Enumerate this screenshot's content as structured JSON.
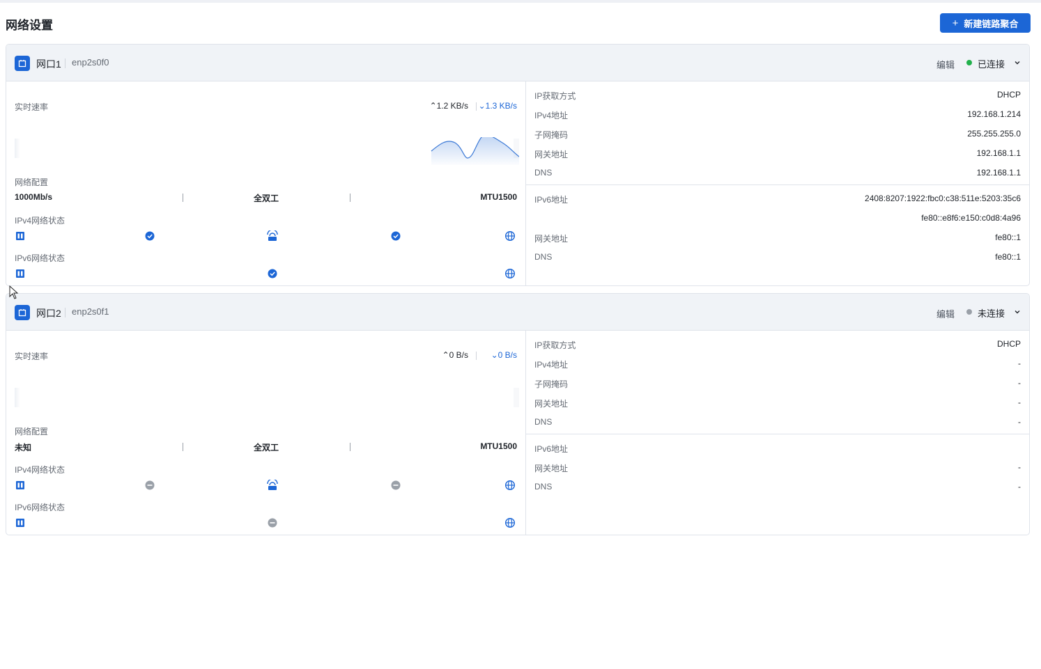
{
  "page": {
    "title": "网络设置",
    "new_button_label": "新建链路聚合"
  },
  "ports": [
    {
      "name": "网口1",
      "device": "enp2s0f0",
      "edit_label": "编辑",
      "status": "已连接",
      "status_color": "#22b14c",
      "realtime_label": "实时速率",
      "upload": "1.2 KB/s",
      "download": "1.3 KB/s",
      "config_label": "网络配置",
      "speed": "1000Mb/s",
      "duplex": "全双工",
      "mtu": "MTU1500",
      "ipv4_status_label": "IPv4网络状态",
      "ipv6_status_label": "IPv6网络状态",
      "ipv4_ok": true,
      "ipv6_ok": true,
      "ipv4_rows": [
        {
          "label": "IP获取方式",
          "value": "DHCP"
        },
        {
          "label": "IPv4地址",
          "value": "192.168.1.214"
        },
        {
          "label": "子网掩码",
          "value": "255.255.255.0"
        },
        {
          "label": "网关地址",
          "value": "192.168.1.1"
        },
        {
          "label": "DNS",
          "value": "192.168.1.1"
        }
      ],
      "ipv6_rows": [
        {
          "label": "IPv6地址",
          "value": "2408:8207:1922:fbc0:c38:511e:5203:35c6"
        },
        {
          "label": "",
          "value": "fe80::e8f6:e150:c0d8:4a96"
        },
        {
          "label": "网关地址",
          "value": "fe80::1"
        },
        {
          "label": "DNS",
          "value": "fe80::1"
        }
      ]
    },
    {
      "name": "网口2",
      "device": "enp2s0f1",
      "edit_label": "编辑",
      "status": "未连接",
      "status_color": "#9aa0a8",
      "realtime_label": "实时速率",
      "upload": "0 B/s",
      "download": "0 B/s",
      "config_label": "网络配置",
      "speed": "未知",
      "duplex": "全双工",
      "mtu": "MTU1500",
      "ipv4_status_label": "IPv4网络状态",
      "ipv6_status_label": "IPv6网络状态",
      "ipv4_ok": false,
      "ipv6_ok": false,
      "ipv4_rows": [
        {
          "label": "IP获取方式",
          "value": "DHCP"
        },
        {
          "label": "IPv4地址",
          "value": "-"
        },
        {
          "label": "子网掩码",
          "value": "-"
        },
        {
          "label": "网关地址",
          "value": "-"
        },
        {
          "label": "DNS",
          "value": "-"
        }
      ],
      "ipv6_rows": [
        {
          "label": "IPv6地址",
          "value": ""
        },
        {
          "label": "网关地址",
          "value": "-"
        },
        {
          "label": "DNS",
          "value": "-"
        }
      ]
    }
  ],
  "colors": {
    "primary": "#1c66d6",
    "connected": "#22b14c",
    "disconnected": "#9aa0a8"
  },
  "icons": [
    "plus-icon",
    "port-icon",
    "chevron-down-icon",
    "device-icon",
    "router-icon",
    "globe-icon",
    "check-icon",
    "minus-icon"
  ]
}
